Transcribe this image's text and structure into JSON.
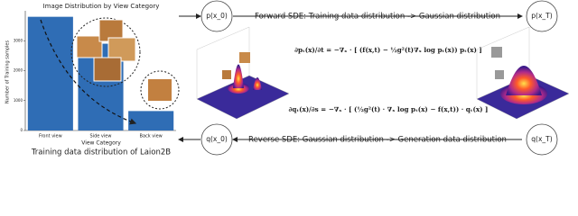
{
  "chart_data": {
    "type": "bar",
    "title": "Image Distribution by View Category",
    "categories": [
      "Front view",
      "Side view",
      "Back view"
    ],
    "values": [
      3800,
      2900,
      650
    ],
    "color": "#2f6db5",
    "xlabel": "View Category",
    "ylabel": "Number of Training samples",
    "ylim": [
      0,
      4000
    ],
    "yticks": [
      0,
      1000,
      2000,
      3000
    ]
  },
  "caption": "Training data distribution  of Laion2B",
  "diagram": {
    "nodes": [
      {
        "label": "p(x_0)"
      },
      {
        "label": "p(x_T)"
      },
      {
        "label": "q(x_0)"
      },
      {
        "label": "q(x_T)"
      }
    ],
    "forward": "Forward SDE:  Training data distribution -> Gaussian distribution",
    "reverse": "Reverse SDE:  Gaussian distribution -> Generation data distribution",
    "equations": [
      "∂pₜ(x)/∂t = −∇ₓ · [ (f(x,t) − ½g²(t)∇ₓ log pₜ(x)) pₜ(x) ]",
      "∂qₜ(x)/∂s = −∇ₓ · [ (½g²(t) · ∇ₓ log pₜ(x) − f(x,t)) · qₜ(x) ]"
    ]
  }
}
